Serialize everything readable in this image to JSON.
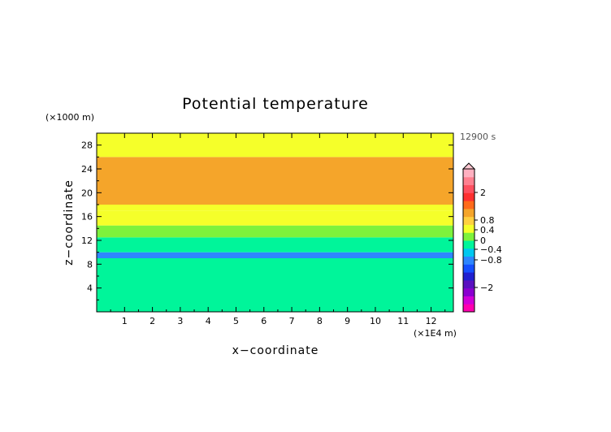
{
  "chart_data": {
    "type": "heatmap",
    "title": "Potential temperature",
    "xlabel": "x−coordinate",
    "ylabel": "z−coordinate",
    "x_unit": "(×1E4 m)",
    "y_unit": "(×1000 m)",
    "time_label": "12900 s",
    "xlim": [
      0,
      12.8
    ],
    "ylim": [
      0,
      30
    ],
    "xticks": [
      "1",
      "2",
      "3",
      "4",
      "5",
      "6",
      "7",
      "8",
      "9",
      "10",
      "11",
      "12"
    ],
    "xtick_values": [
      1,
      2,
      3,
      4,
      5,
      6,
      7,
      8,
      9,
      10,
      11,
      12
    ],
    "yticks": [
      "4",
      "8",
      "12",
      "16",
      "20",
      "24",
      "28"
    ],
    "ytick_values": [
      4,
      8,
      12,
      16,
      20,
      24,
      28
    ],
    "bands": [
      {
        "z_min": 0,
        "z_max": 9.0,
        "level": "-0.4 to 0",
        "color": "#00f59a"
      },
      {
        "z_min": 9.0,
        "z_max": 10.0,
        "level": "-0.8 to -0.4",
        "color": "#2e86ff"
      },
      {
        "z_min": 10.0,
        "z_max": 12.5,
        "level": "-0.4 to 0",
        "color": "#00f59a"
      },
      {
        "z_min": 12.5,
        "z_max": 14.5,
        "level": "0 to 0.2",
        "color": "#7df23c"
      },
      {
        "z_min": 14.5,
        "z_max": 17.0,
        "level": "0.2 to 0.4",
        "color": "#f5ff2a"
      },
      {
        "z_min": 17.0,
        "z_max": 18.0,
        "level": "0.2 to 0.4",
        "color": "#f5ff2a"
      },
      {
        "z_min": 18.0,
        "z_max": 26.0,
        "level": "0.4 to 0.6",
        "color": "#f5a52a"
      },
      {
        "z_min": 26.0,
        "z_max": 30.0,
        "level": "0.2 to 0.4",
        "color": "#f5ff2a"
      }
    ],
    "colorbar": {
      "labels": [
        "2",
        "0.8",
        "0.4",
        "0",
        "−0.4",
        "−0.8",
        "−2"
      ],
      "label_values": [
        2,
        0.8,
        0.4,
        0,
        -0.4,
        -0.8,
        -2
      ],
      "colors": [
        "#ff00b0",
        "#d000d8",
        "#8a00d0",
        "#5a10c0",
        "#2020d0",
        "#1550ff",
        "#2e86ff",
        "#00c8f0",
        "#00f59a",
        "#7df23c",
        "#f5ff2a",
        "#ffd040",
        "#f5a52a",
        "#ff6a1a",
        "#ff3030",
        "#ff5060",
        "#ff8090",
        "#ffb0c0"
      ]
    }
  }
}
